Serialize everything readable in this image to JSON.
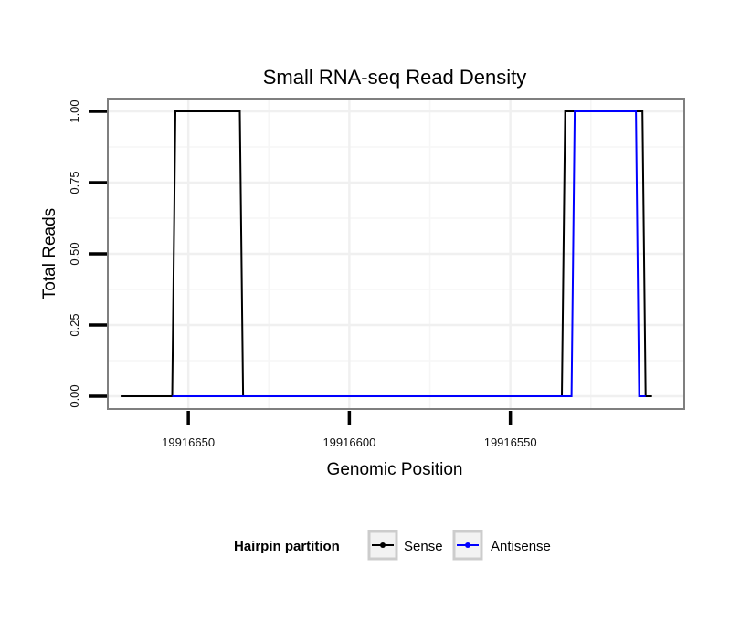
{
  "chart_data": {
    "type": "line",
    "title": "Small RNA-seq Read Density",
    "xlabel": "Genomic Position",
    "ylabel": "Total Reads",
    "x_reversed": true,
    "xlim": [
      19916675,
      19916496
    ],
    "ylim": [
      -0.045,
      1.045
    ],
    "x_ticks": [
      19916650,
      19916600,
      19916550
    ],
    "x_tick_labels": [
      "19916650",
      "19916600",
      "19916550"
    ],
    "y_ticks": [
      0,
      0.25,
      0.5,
      0.75,
      1
    ],
    "y_tick_labels": [
      "0.00",
      "0.25",
      "0.50",
      "0.75",
      "1.00"
    ],
    "grid": true,
    "legend": {
      "title": "Hairpin partition",
      "position": "bottom",
      "entries": [
        {
          "name": "Sense",
          "color": "#000000"
        },
        {
          "name": "Antisense",
          "color": "#0000ff"
        }
      ]
    },
    "series": [
      {
        "name": "Sense",
        "color": "#000000",
        "x": [
          19916671,
          19916655,
          19916654,
          19916634,
          19916633,
          19916534,
          19916533,
          19916509,
          19916508,
          19916506
        ],
        "y": [
          0,
          0,
          1,
          1,
          0,
          0,
          1,
          1,
          0,
          0
        ]
      },
      {
        "name": "Antisense",
        "color": "#0000ff",
        "x": [
          19916655,
          19916633,
          19916531,
          19916530,
          19916511,
          19916510,
          19916508
        ],
        "y": [
          0,
          0,
          0,
          1,
          1,
          0,
          0
        ]
      }
    ]
  }
}
